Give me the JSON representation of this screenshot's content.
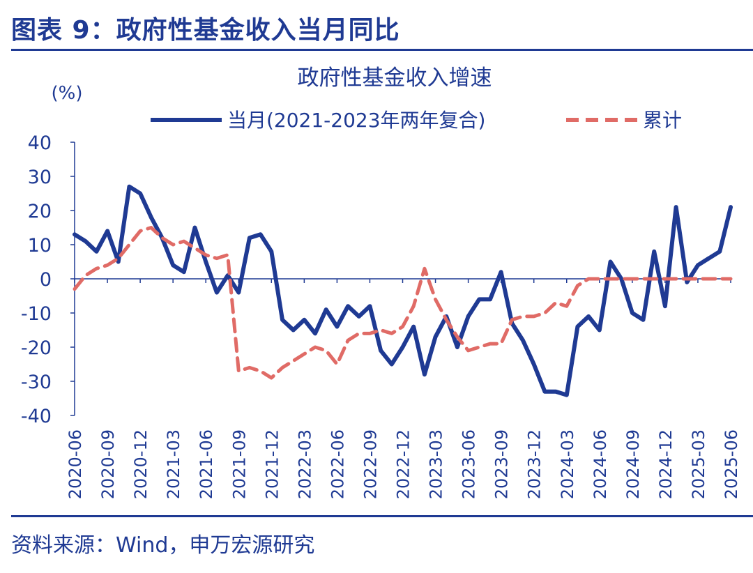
{
  "figure": {
    "title": "图表 9：政府性基金收入当月同比",
    "source": "资料来源：Wind，申万宏源研究"
  },
  "colors": {
    "series_monthly": "#1f3a93",
    "series_cumulative": "#e06b66",
    "axis": "#1f3a93",
    "text": "#1f3a93"
  },
  "chart_data": {
    "type": "line",
    "title": "政府性基金收入增速",
    "unit_label": "(%)",
    "ylim": [
      -40,
      40
    ],
    "yticks": [
      40,
      30,
      20,
      10,
      0,
      -10,
      -20,
      -30,
      -40
    ],
    "x_tick_labels": [
      "2020-06",
      "2020-09",
      "2020-12",
      "2021-03",
      "2021-06",
      "2021-09",
      "2021-12",
      "2022-03",
      "2022-06",
      "2022-09",
      "2022-12",
      "2023-03",
      "2023-06",
      "2023-09",
      "2023-12",
      "2024-03",
      "2024-06",
      "2024-09",
      "2024-12",
      "2025-03",
      "2025-06"
    ],
    "grid": false,
    "legend_position": "top",
    "x": [
      "2020-06",
      "2020-07",
      "2020-08",
      "2020-09",
      "2020-10",
      "2020-11",
      "2020-12",
      "2021-01",
      "2021-02",
      "2021-03",
      "2021-04",
      "2021-05",
      "2021-06",
      "2021-07",
      "2021-08",
      "2021-09",
      "2021-10",
      "2021-11",
      "2021-12",
      "2022-01",
      "2022-02",
      "2022-03",
      "2022-04",
      "2022-05",
      "2022-06",
      "2022-07",
      "2022-08",
      "2022-09",
      "2022-10",
      "2022-11",
      "2022-12",
      "2023-01",
      "2023-02",
      "2023-03",
      "2023-04",
      "2023-05",
      "2023-06",
      "2023-07",
      "2023-08",
      "2023-09",
      "2023-10",
      "2023-11",
      "2023-12",
      "2024-01",
      "2024-02",
      "2024-03",
      "2024-04",
      "2024-05",
      "2024-06",
      "2024-07",
      "2024-08",
      "2024-09",
      "2024-10",
      "2024-11",
      "2024-12",
      "2025-01",
      "2025-02",
      "2025-03",
      "2025-04",
      "2025-05",
      "2025-06"
    ],
    "series": [
      {
        "name": "当月(2021-2023年两年复合)",
        "style": "solid",
        "values": [
          13,
          11,
          8,
          14,
          5,
          27,
          25,
          18,
          12,
          4,
          2,
          15,
          5,
          -4,
          1,
          -4,
          12,
          13,
          8,
          -12,
          -15,
          -12,
          -16,
          -9,
          -14,
          -8,
          -11,
          -8,
          -21,
          -25,
          -20,
          -14,
          -28,
          -17,
          -11,
          -20,
          -11,
          -6,
          -6,
          2,
          -13,
          -18,
          -25,
          -33,
          -33,
          -34,
          -14,
          -11,
          -15,
          5,
          0,
          -10,
          -12,
          8,
          -8,
          21,
          -1,
          4,
          6,
          8,
          21
        ]
      },
      {
        "name": "累计",
        "style": "dashed",
        "values": [
          -3,
          1,
          3,
          4,
          6,
          10,
          14,
          15,
          12,
          10,
          11,
          9,
          7,
          6,
          7,
          -27,
          -26,
          -27,
          -29,
          -26,
          -24,
          -22,
          -20,
          -21,
          -25,
          -18,
          -16,
          -16,
          -15,
          -16,
          -14,
          -8,
          3,
          -6,
          -12,
          -17,
          -21,
          -20,
          -19,
          -19,
          -12,
          -11,
          -11,
          -10,
          -7,
          -8,
          -2,
          0,
          0,
          0,
          0,
          0,
          0,
          0,
          0,
          0,
          0,
          0,
          0,
          0,
          0
        ]
      }
    ]
  }
}
